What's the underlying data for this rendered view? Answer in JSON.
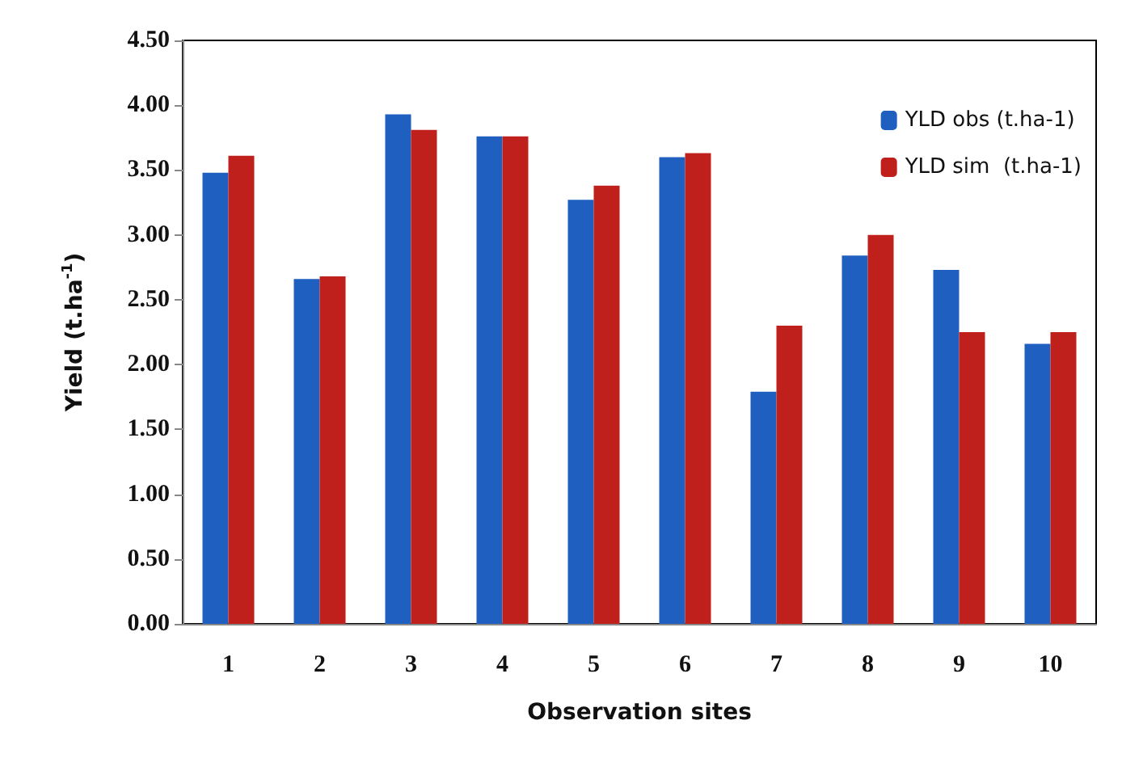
{
  "chart_data": {
    "type": "bar",
    "xlabel": "Observation sites",
    "ylabel": "Yield (t.ha$^{-1}$)",
    "categories": [
      "1",
      "2",
      "3",
      "4",
      "5",
      "6",
      "7",
      "8",
      "9",
      "10"
    ],
    "series": [
      {
        "name": "YLD obs (t.ha-1)",
        "color": "#1f5fbf",
        "values": [
          3.48,
          2.66,
          3.93,
          3.76,
          3.27,
          3.6,
          1.79,
          2.84,
          2.73,
          2.16
        ]
      },
      {
        "name": "YLD sim  (t.ha-1)",
        "color": "#c0201c",
        "values": [
          3.61,
          2.68,
          3.81,
          3.76,
          3.38,
          3.63,
          2.3,
          3.0,
          2.25,
          2.25
        ]
      }
    ],
    "ylim": [
      0,
      4.5
    ],
    "yticks": [
      {
        "value": 0,
        "label": "0.00"
      },
      {
        "value": 0.5,
        "label": "0.50"
      },
      {
        "value": 1,
        "label": "1.00"
      },
      {
        "value": 1.5,
        "label": "1.50"
      },
      {
        "value": 2,
        "label": "2.00"
      },
      {
        "value": 2.5,
        "label": "2.50"
      },
      {
        "value": 3,
        "label": "3.00"
      },
      {
        "value": 3.5,
        "label": "3.50"
      },
      {
        "value": 4,
        "label": "4.00"
      },
      {
        "value": 4.5,
        "label": "4.50"
      }
    ],
    "grid": false,
    "legend": "top right"
  }
}
